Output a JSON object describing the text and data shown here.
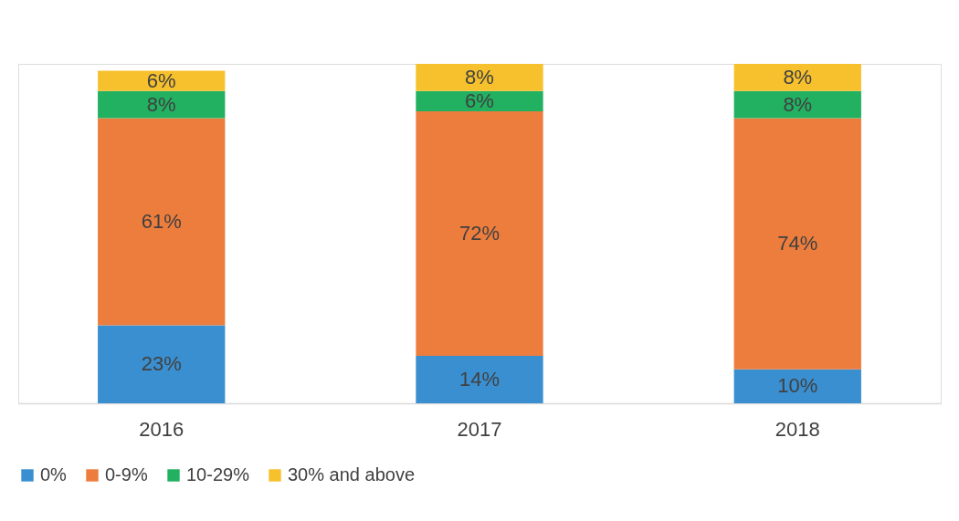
{
  "chart_data": {
    "type": "bar",
    "stacked": true,
    "categories": [
      "2016",
      "2017",
      "2018"
    ],
    "series": [
      {
        "name": "0%",
        "color": "#3a8fd0",
        "values": [
          23,
          14,
          10
        ],
        "value_labels": [
          "23%",
          "14%",
          "10%"
        ]
      },
      {
        "name": "0-9%",
        "color": "#ed7d3d",
        "values": [
          61,
          72,
          74
        ],
        "value_labels": [
          "61%",
          "72%",
          "74%"
        ]
      },
      {
        "name": "10-29%",
        "color": "#22b061",
        "values": [
          8,
          6,
          8
        ],
        "value_labels": [
          "8%",
          "6%",
          "8%"
        ]
      },
      {
        "name": "30% and above",
        "color": "#f6c12d",
        "values": [
          6,
          8,
          8
        ],
        "value_labels": [
          "6%",
          "8%",
          "8%"
        ]
      }
    ],
    "legend": "bottom",
    "grid": false
  }
}
